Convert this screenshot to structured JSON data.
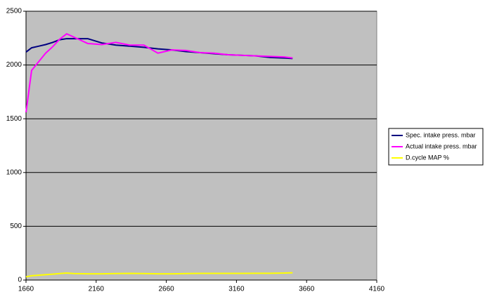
{
  "chart_data": {
    "type": "line",
    "x": [
      1660,
      1700,
      1750,
      1800,
      1850,
      1900,
      1950,
      2000,
      2100,
      2200,
      2300,
      2400,
      2500,
      2600,
      2700,
      2800,
      2900,
      3000,
      3100,
      3200,
      3300,
      3400,
      3500,
      3560
    ],
    "series": [
      {
        "name": "Spec. intake press. mbar",
        "color": "#000080",
        "values": [
          2120,
          2160,
          2175,
          2190,
          2210,
          2235,
          2245,
          2245,
          2245,
          2205,
          2185,
          2175,
          2165,
          2150,
          2140,
          2125,
          2115,
          2105,
          2095,
          2090,
          2085,
          2070,
          2065,
          2060
        ]
      },
      {
        "name": "Actual intake press. mbar",
        "color": "#ff00ff",
        "values": [
          1560,
          1950,
          2030,
          2110,
          2170,
          2240,
          2290,
          2260,
          2200,
          2190,
          2210,
          2185,
          2185,
          2110,
          2140,
          2135,
          2115,
          2110,
          2095,
          2090,
          2085,
          2080,
          2075,
          2065
        ]
      },
      {
        "name": "D.cycle MAP %",
        "color": "#ffff00",
        "values": [
          30,
          40,
          45,
          50,
          55,
          60,
          65,
          60,
          58,
          58,
          60,
          62,
          60,
          58,
          58,
          60,
          62,
          62,
          62,
          62,
          63,
          63,
          65,
          68
        ]
      }
    ],
    "xlim": [
      1660,
      4160
    ],
    "xticks": [
      1660,
      2160,
      2660,
      3160,
      3660,
      4160
    ],
    "ylim": [
      0,
      2500
    ],
    "yticks": [
      0,
      500,
      1000,
      1500,
      2000,
      2500
    ],
    "grid": true,
    "legend": "right"
  }
}
